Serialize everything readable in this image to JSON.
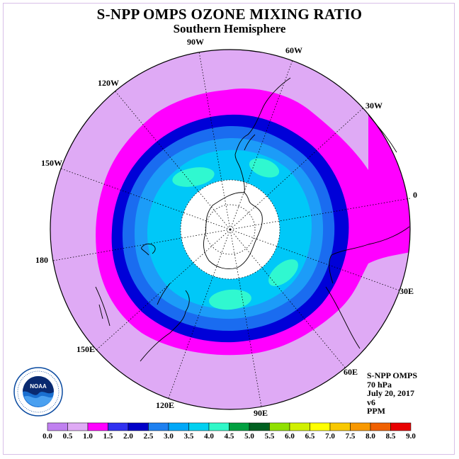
{
  "title": "S-NPP OMPS OZONE MIXING RATIO",
  "subtitle": "Southern Hemisphere",
  "longitude_labels": {
    "w90": "90W",
    "w60": "60W",
    "w30": "30W",
    "e0": "0",
    "e30": "30E",
    "e60": "60E",
    "e90": "90E",
    "e120": "120E",
    "e150": "150E",
    "l180": "180",
    "w150": "150W",
    "w120": "120W"
  },
  "info": {
    "instrument": "S-NPP OMPS",
    "level": "70 hPa",
    "date": "July 20, 2017",
    "version": "v6",
    "units": "PPM"
  },
  "logo": {
    "text": "NOAA",
    "ring_text": "NATIONAL OCEANIC AND ATMOSPHERIC ADMINISTRATION · U.S. DEPARTMENT OF COMMERCE"
  },
  "colorbar": {
    "labels": [
      "0.0",
      "0.5",
      "1.0",
      "1.5",
      "2.0",
      "2.5",
      "3.0",
      "3.5",
      "4.0",
      "4.5",
      "5.0",
      "5.5",
      "6.0",
      "6.5",
      "7.0",
      "7.5",
      "8.0",
      "8.5",
      "9.0"
    ],
    "colors": [
      "#c080f0",
      "#dfaaf5",
      "#ff00ff",
      "#3030f0",
      "#0000c8",
      "#1e80f0",
      "#00a8f8",
      "#00d0f0",
      "#30f8c8",
      "#00a040",
      "#006020",
      "#90e000",
      "#d0f000",
      "#ffff00",
      "#f8c800",
      "#f89800",
      "#f06000",
      "#e80000",
      "#906040"
    ]
  },
  "colors": {
    "band_0_5": "#dfaaf5",
    "band_1_0": "#ff00ff",
    "band_1_5": "#0000d8",
    "band_2_0": "#1a6cf0",
    "band_2_5": "#1c9cf8",
    "band_3_0": "#00c8f8",
    "band_3_5": "#30f8d0",
    "hole": "#ffffff"
  }
}
